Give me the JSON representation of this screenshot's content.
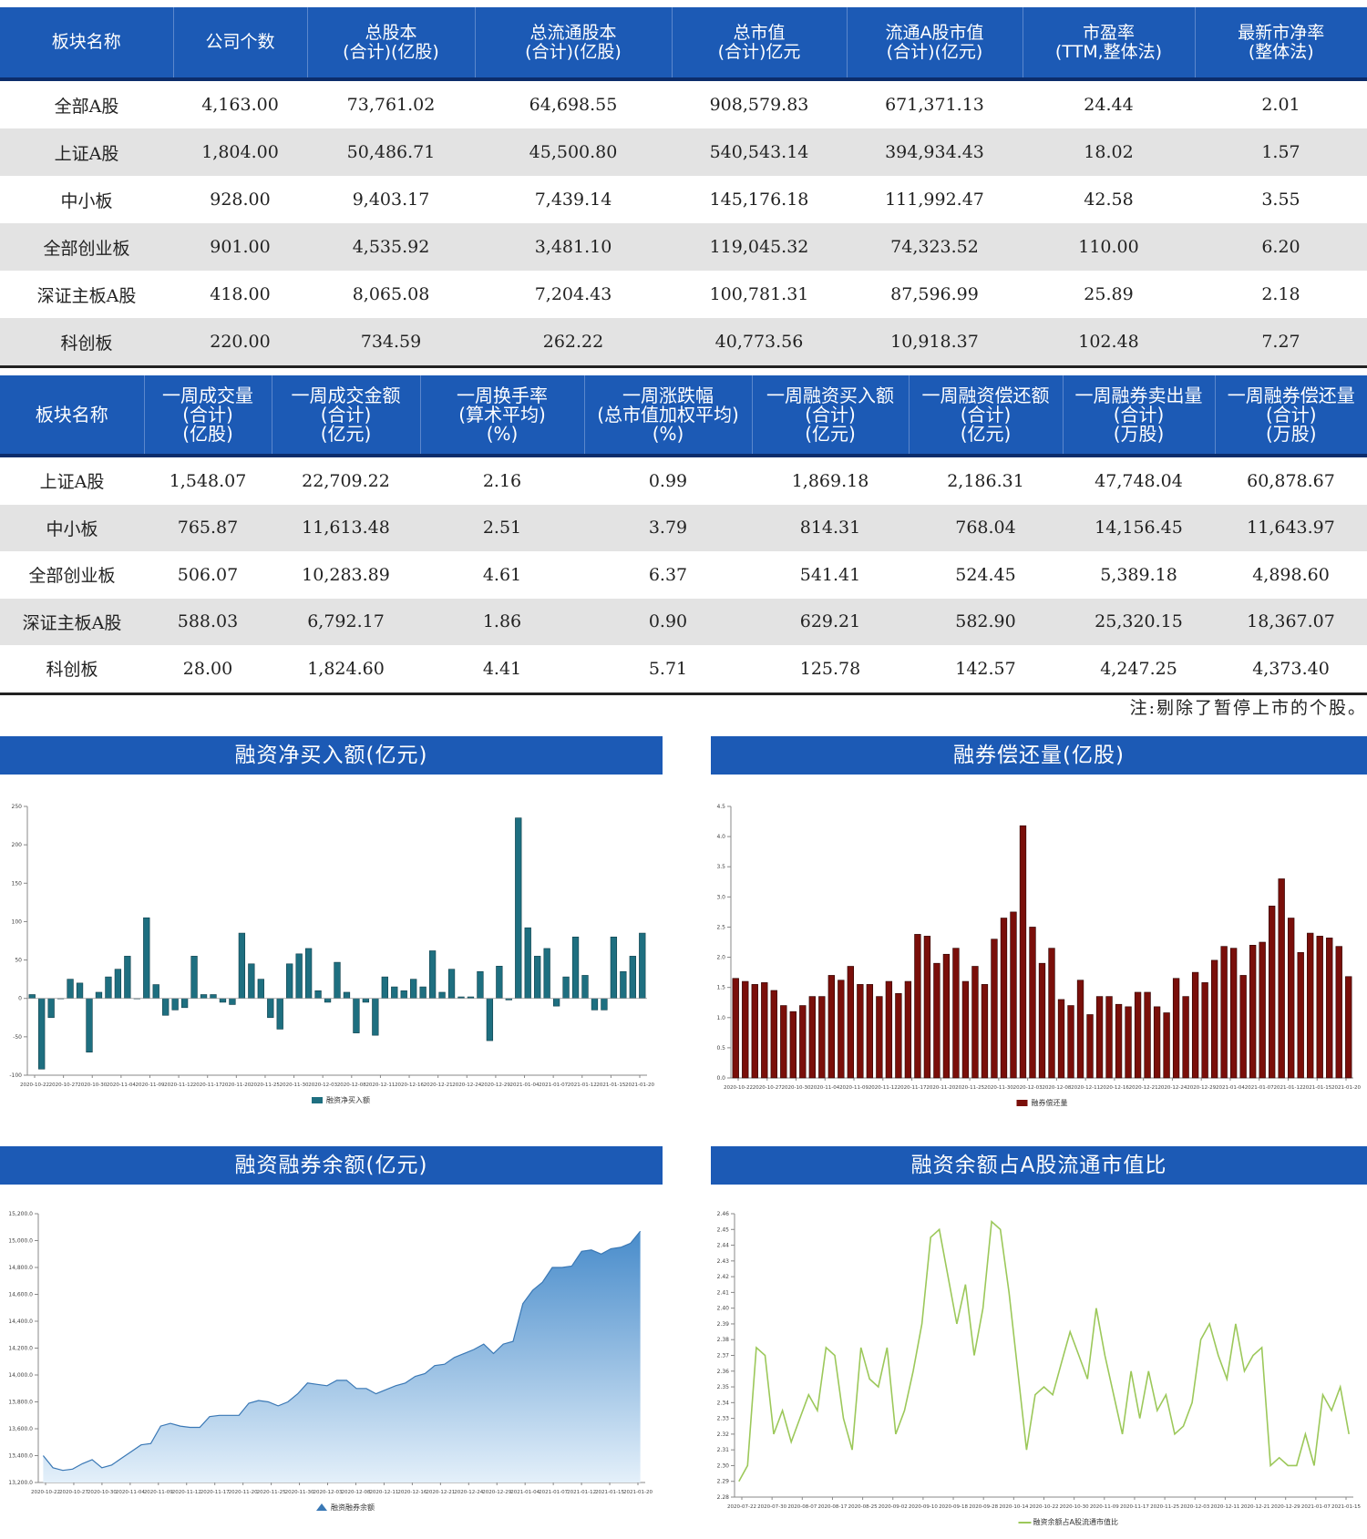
{
  "table1": {
    "headers": [
      [
        "板块名称"
      ],
      [
        "公司个数"
      ],
      [
        "总股本",
        "(合计)(亿股)"
      ],
      [
        "总流通股本",
        "(合计)(亿股)"
      ],
      [
        "总市值",
        "(合计)亿元"
      ],
      [
        "流通A股市值",
        "(合计)(亿元)"
      ],
      [
        "市盈率",
        "(TTM,整体法)"
      ],
      [
        "最新市净率",
        "(整体法)"
      ]
    ],
    "rows": [
      [
        "全部A股",
        "4,163.00",
        "73,761.02",
        "64,698.55",
        "908,579.83",
        "671,371.13",
        "24.44",
        "2.01"
      ],
      [
        "上证A股",
        "1,804.00",
        "50,486.71",
        "45,500.80",
        "540,543.14",
        "394,934.43",
        "18.02",
        "1.57"
      ],
      [
        "中小板",
        "928.00",
        "9,403.17",
        "7,439.14",
        "145,176.18",
        "111,992.47",
        "42.58",
        "3.55"
      ],
      [
        "全部创业板",
        "901.00",
        "4,535.92",
        "3,481.10",
        "119,045.32",
        "74,323.52",
        "110.00",
        "6.20"
      ],
      [
        "深证主板A股",
        "418.00",
        "8,065.08",
        "7,204.43",
        "100,781.31",
        "87,596.99",
        "25.89",
        "2.18"
      ],
      [
        "科创板",
        "220.00",
        "734.59",
        "262.22",
        "40,773.56",
        "10,918.37",
        "102.48",
        "7.27"
      ]
    ]
  },
  "table2": {
    "headers": [
      [
        "板块名称"
      ],
      [
        "一周成交量",
        "(合计)",
        "(亿股)"
      ],
      [
        "一周成交金额",
        "(合计)",
        "(亿元)"
      ],
      [
        "一周换手率",
        "(算术平均)",
        "(%)"
      ],
      [
        "一周涨跌幅",
        "(总市值加权平均)",
        "(%)"
      ],
      [
        "一周融资买入额",
        "(合计)",
        "(亿元)"
      ],
      [
        "一周融资偿还额",
        "(合计)",
        "(亿元)"
      ],
      [
        "一周融券卖出量",
        "(合计)",
        "(万股)"
      ],
      [
        "一周融券偿还量",
        "(合计)",
        "(万股)"
      ]
    ],
    "rows": [
      [
        "上证A股",
        "1,548.07",
        "22,709.22",
        "2.16",
        "0.99",
        "1,869.18",
        "2,186.31",
        "47,748.04",
        "60,878.67"
      ],
      [
        "中小板",
        "765.87",
        "11,613.48",
        "2.51",
        "3.79",
        "814.31",
        "768.04",
        "14,156.45",
        "11,643.97"
      ],
      [
        "全部创业板",
        "506.07",
        "10,283.89",
        "4.61",
        "6.37",
        "541.41",
        "524.45",
        "5,389.18",
        "4,898.60"
      ],
      [
        "深证主板A股",
        "588.03",
        "6,792.17",
        "1.86",
        "0.90",
        "629.21",
        "582.90",
        "25,320.15",
        "18,367.07"
      ],
      [
        "科创板",
        "28.00",
        "1,824.60",
        "4.41",
        "5.71",
        "125.78",
        "142.57",
        "4,247.25",
        "4,373.40"
      ]
    ]
  },
  "note": "注:剔除了暂停上市的个股。",
  "colors": {
    "header_bg": "#1c5ab5",
    "bar_teal": "#1e6f80",
    "bar_red": "#7a0f0a",
    "area_blue": "#5c9bd0",
    "line_green": "#9cc85a"
  },
  "chart_data": [
    {
      "type": "bar",
      "title": "融资净买入额(亿元)",
      "legend": "融资净买入额",
      "legend_position": "bottom",
      "ylim": [
        -100,
        250
      ],
      "yticks": [
        "250",
        "200",
        "150",
        "100",
        "50",
        "0",
        "-50",
        "-100"
      ],
      "xticks": [
        "2020-10-22",
        "2020-10-27",
        "2020-10-30",
        "2020-11-04",
        "2020-11-09",
        "2020-11-12",
        "2020-11-17",
        "2020-11-20",
        "2020-11-25",
        "2020-11-30",
        "2020-12-03",
        "2020-12-08",
        "2020-12-11",
        "2020-12-16",
        "2020-12-21",
        "2020-12-24",
        "2020-12-29",
        "2021-01-04",
        "2021-01-07",
        "2021-01-12",
        "2021-01-15",
        "2021-01-20"
      ],
      "values": [
        5,
        -92,
        -25,
        0,
        25,
        20,
        -70,
        8,
        28,
        38,
        55,
        0,
        105,
        18,
        -22,
        -15,
        -12,
        55,
        5,
        5,
        -5,
        -8,
        85,
        45,
        25,
        -25,
        -40,
        45,
        58,
        65,
        10,
        -5,
        47,
        8,
        -45,
        -5,
        -48,
        28,
        15,
        10,
        25,
        15,
        62,
        8,
        38,
        2,
        2,
        35,
        -55,
        42,
        -2,
        235,
        92,
        55,
        65,
        -10,
        28,
        80,
        30,
        -15,
        -15,
        80,
        35,
        55,
        85
      ]
    },
    {
      "type": "bar",
      "title": "融券偿还量(亿股)",
      "legend": "融券偿还量",
      "legend_position": "bottom",
      "ylim": [
        0,
        4.5
      ],
      "yticks": [
        "4.5",
        "4.0",
        "3.5",
        "3.0",
        "2.5",
        "2.0",
        "1.5",
        "1.0",
        "0.5",
        "0.0"
      ],
      "xticks": [
        "2020-10-22",
        "2020-10-27",
        "2020-10-30",
        "2020-11-04",
        "2020-11-09",
        "2020-11-12",
        "2020-11-17",
        "2020-11-20",
        "2020-11-25",
        "2020-11-30",
        "2020-12-03",
        "2020-12-08",
        "2020-12-11",
        "2020-12-16",
        "2020-12-21",
        "2020-12-24",
        "2020-12-29",
        "2021-01-04",
        "2021-01-07",
        "2021-01-12",
        "2021-01-15",
        "2021-01-20"
      ],
      "values": [
        1.65,
        1.6,
        1.55,
        1.58,
        1.45,
        1.2,
        1.1,
        1.2,
        1.35,
        1.35,
        1.7,
        1.62,
        1.85,
        1.55,
        1.55,
        1.35,
        1.6,
        1.4,
        1.6,
        2.38,
        2.35,
        1.9,
        2.05,
        2.15,
        1.6,
        1.85,
        1.55,
        2.3,
        2.65,
        2.75,
        4.18,
        2.5,
        1.9,
        2.15,
        1.3,
        1.2,
        1.62,
        1.05,
        1.35,
        1.35,
        1.22,
        1.18,
        1.42,
        1.42,
        1.18,
        1.08,
        1.65,
        1.35,
        1.75,
        1.58,
        1.95,
        2.18,
        2.15,
        1.7,
        2.2,
        2.25,
        2.85,
        3.3,
        2.65,
        2.08,
        2.4,
        2.35,
        2.32,
        2.18,
        1.68
      ]
    },
    {
      "type": "area",
      "title": "融资融券余额(亿元)",
      "legend": "融资融券余额",
      "legend_position": "bottom",
      "ylim": [
        13200,
        15200
      ],
      "yticks": [
        "15,200.0",
        "15,000.0",
        "14,800.0",
        "14,600.0",
        "14,400.0",
        "14,200.0",
        "14,000.0",
        "13,800.0",
        "13,600.0",
        "13,400.0",
        "13,200.0"
      ],
      "xticks": [
        "2020-10-22",
        "2020-10-27",
        "2020-10-30",
        "2020-11-04",
        "2020-11-09",
        "2020-11-12",
        "2020-11-17",
        "2020-11-20",
        "2020-11-25",
        "2020-11-30",
        "2020-12-03",
        "2020-12-08",
        "2020-12-11",
        "2020-12-16",
        "2020-12-21",
        "2020-12-24",
        "2020-12-29",
        "2021-01-04",
        "2021-01-07",
        "2021-01-12",
        "2021-01-15",
        "2021-01-20"
      ],
      "values": [
        13400,
        13310,
        13290,
        13300,
        13340,
        13370,
        13310,
        13330,
        13380,
        13430,
        13480,
        13490,
        13620,
        13640,
        13620,
        13610,
        13610,
        13690,
        13700,
        13700,
        13700,
        13790,
        13810,
        13800,
        13770,
        13800,
        13860,
        13940,
        13930,
        13920,
        13960,
        13960,
        13900,
        13900,
        13860,
        13890,
        13920,
        13940,
        13990,
        14010,
        14070,
        14080,
        14130,
        14160,
        14190,
        14230,
        14160,
        14230,
        14250,
        14530,
        14630,
        14690,
        14800,
        14800,
        14810,
        14920,
        14930,
        14900,
        14940,
        14950,
        14980,
        15070
      ]
    },
    {
      "type": "line",
      "title": "融资余额占A股流通市值比",
      "legend": "融资余额占A股流通市值比",
      "legend_position": "bottom",
      "ylim": [
        2.28,
        2.46
      ],
      "yticks": [
        "2.46",
        "2.45",
        "2.44",
        "2.43",
        "2.42",
        "2.41",
        "2.40",
        "2.39",
        "2.38",
        "2.37",
        "2.36",
        "2.35",
        "2.34",
        "2.33",
        "2.32",
        "2.31",
        "2.30",
        "2.29",
        "2.28"
      ],
      "xticks": [
        "2020-07-22",
        "2020-07-30",
        "2020-08-07",
        "2020-08-17",
        "2020-08-25",
        "2020-09-02",
        "2020-09-10",
        "2020-09-18",
        "2020-09-28",
        "2020-10-14",
        "2020-10-22",
        "2020-10-30",
        "2020-11-09",
        "2020-11-17",
        "2020-11-25",
        "2020-12-03",
        "2020-12-11",
        "2020-12-21",
        "2020-12-29",
        "2021-01-07",
        "2021-01-15"
      ],
      "values": [
        2.29,
        2.3,
        2.375,
        2.37,
        2.32,
        2.335,
        2.315,
        2.33,
        2.345,
        2.335,
        2.375,
        2.37,
        2.33,
        2.31,
        2.375,
        2.355,
        2.35,
        2.375,
        2.32,
        2.335,
        2.36,
        2.39,
        2.445,
        2.45,
        2.42,
        2.39,
        2.415,
        2.37,
        2.4,
        2.455,
        2.45,
        2.41,
        2.36,
        2.31,
        2.345,
        2.35,
        2.345,
        2.365,
        2.385,
        2.37,
        2.355,
        2.4,
        2.37,
        2.345,
        2.32,
        2.36,
        2.33,
        2.36,
        2.335,
        2.345,
        2.32,
        2.325,
        2.34,
        2.38,
        2.39,
        2.37,
        2.355,
        2.39,
        2.36,
        2.37,
        2.375,
        2.3,
        2.305,
        2.3,
        2.3,
        2.32,
        2.3,
        2.345,
        2.335,
        2.35,
        2.32
      ]
    }
  ]
}
